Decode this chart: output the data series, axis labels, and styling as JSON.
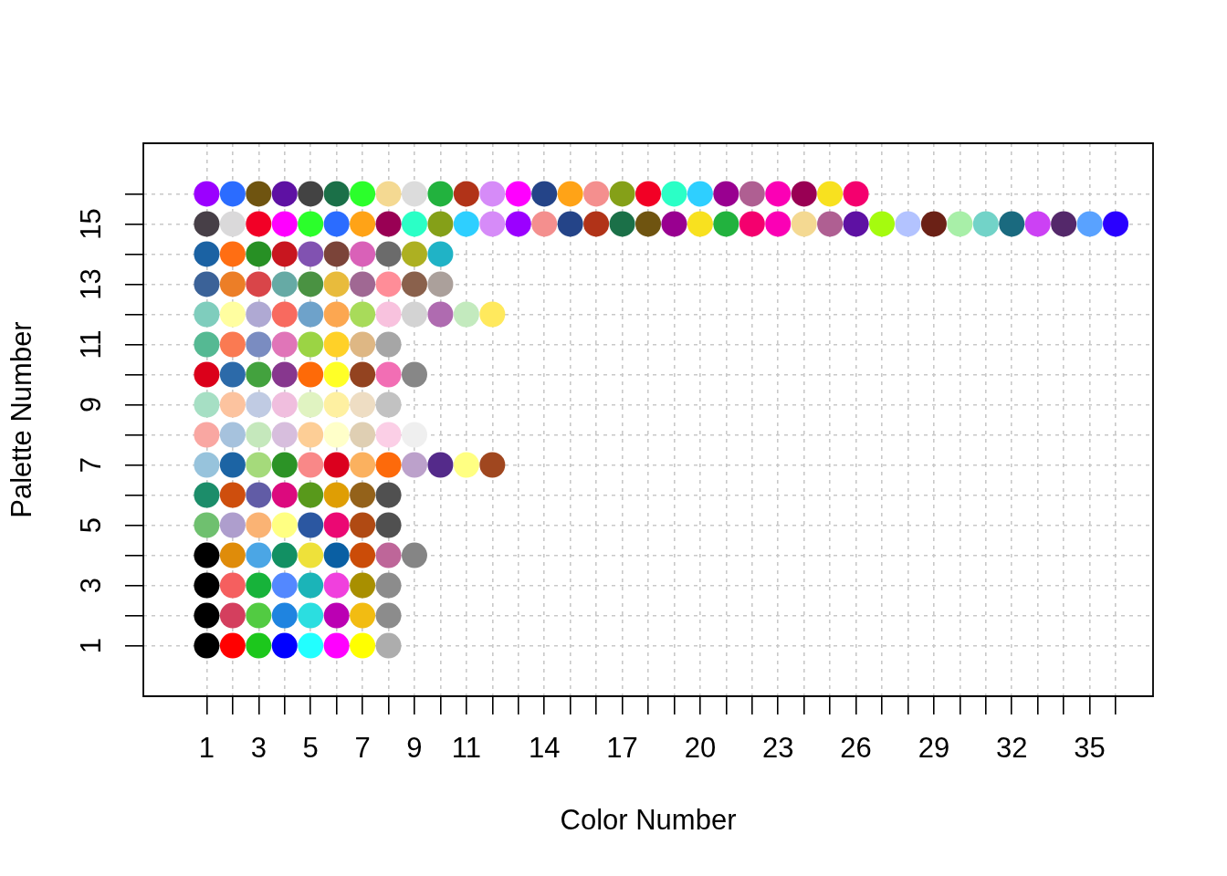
{
  "chart_data": {
    "type": "scatter",
    "xlabel": "Color Number",
    "ylabel": "Palette Number",
    "xlim": [
      -1.44,
      37.44
    ],
    "ylim": [
      -0.68,
      17.68
    ],
    "xticks": [
      1,
      {
        "value": 2,
        "label": null
      },
      3,
      {
        "value": 4,
        "label": null
      },
      5,
      {
        "value": 6,
        "label": null
      },
      7,
      {
        "value": 8,
        "label": null
      },
      9,
      {
        "value": 10,
        "label": null
      },
      11,
      {
        "value": 12,
        "label": null
      },
      {
        "value": 13,
        "label": null
      },
      14,
      {
        "value": 15,
        "label": null
      },
      {
        "value": 16,
        "label": null
      },
      17,
      {
        "value": 18,
        "label": null
      },
      {
        "value": 19,
        "label": null
      },
      20,
      {
        "value": 21,
        "label": null
      },
      {
        "value": 22,
        "label": null
      },
      23,
      {
        "value": 24,
        "label": null
      },
      {
        "value": 25,
        "label": null
      },
      26,
      {
        "value": 27,
        "label": null
      },
      {
        "value": 28,
        "label": null
      },
      29,
      {
        "value": 30,
        "label": null
      },
      {
        "value": 31,
        "label": null
      },
      32,
      {
        "value": 33,
        "label": null
      },
      {
        "value": 34,
        "label": null
      },
      35,
      {
        "value": 36,
        "label": null
      }
    ],
    "yticks": [
      1,
      {
        "value": 2,
        "label": null
      },
      3,
      {
        "value": 4,
        "label": null
      },
      5,
      {
        "value": 6,
        "label": null
      },
      7,
      {
        "value": 8,
        "label": null
      },
      9,
      {
        "value": 10,
        "label": null
      },
      11,
      {
        "value": 12,
        "label": null
      },
      13,
      {
        "value": 14,
        "label": null
      },
      15,
      {
        "value": 16,
        "label": null
      }
    ],
    "grid": true,
    "marker": "circle",
    "series": [
      {
        "x": [
          1,
          2,
          3,
          4,
          5,
          6,
          7,
          8
        ],
        "values": [
          1,
          1,
          1,
          1,
          1,
          1,
          1,
          1
        ],
        "colors": [
          "#000000",
          "#ff0000",
          "#1cc71c",
          "#0000ff",
          "#22ffff",
          "#ff00ff",
          "#ffff00",
          "#adadad"
        ]
      },
      {
        "x": [
          1,
          2,
          3,
          4,
          5,
          6,
          7,
          8
        ],
        "values": [
          2,
          2,
          2,
          2,
          2,
          2,
          2,
          2
        ],
        "colors": [
          "#000000",
          "#d43f5e",
          "#52cb42",
          "#1f84e0",
          "#2bdee0",
          "#bb00b3",
          "#f2bc12",
          "#8c8c8c"
        ]
      },
      {
        "x": [
          1,
          2,
          3,
          4,
          5,
          6,
          7,
          8
        ],
        "values": [
          3,
          3,
          3,
          3,
          3,
          3,
          3,
          3
        ],
        "colors": [
          "#000000",
          "#f55f5f",
          "#17b33a",
          "#5388ff",
          "#1bb4b8",
          "#f040dd",
          "#a88f00",
          "#8c8c8c"
        ]
      },
      {
        "x": [
          1,
          2,
          3,
          4,
          5,
          6,
          7,
          8,
          9
        ],
        "values": [
          4,
          4,
          4,
          4,
          4,
          4,
          4,
          4,
          4
        ],
        "colors": [
          "#000000",
          "#df8c0a",
          "#4ba6e5",
          "#129063",
          "#eee13a",
          "#0a5fa3",
          "#cb4c08",
          "#be6699",
          "#858585"
        ]
      },
      {
        "x": [
          1,
          2,
          3,
          4,
          5,
          6,
          7,
          8
        ],
        "values": [
          5,
          5,
          5,
          5,
          5,
          5,
          5,
          5
        ],
        "colors": [
          "#6fc06f",
          "#ae9ecd",
          "#fab374",
          "#ffff82",
          "#2b57a1",
          "#eb0873",
          "#b04a13",
          "#505050"
        ]
      },
      {
        "x": [
          1,
          2,
          3,
          4,
          5,
          6,
          7,
          8
        ],
        "values": [
          6,
          6,
          6,
          6,
          6,
          6,
          6,
          6
        ],
        "colors": [
          "#1c8d6a",
          "#ce4e0d",
          "#615ca6",
          "#dc0a7e",
          "#58991b",
          "#df9e04",
          "#94621a",
          "#505050"
        ]
      },
      {
        "x": [
          1,
          2,
          3,
          4,
          5,
          6,
          7,
          8,
          9,
          10,
          11,
          12
        ],
        "values": [
          7,
          7,
          7,
          7,
          7,
          7,
          7,
          7,
          7,
          7,
          7,
          7
        ],
        "colors": [
          "#97c3dc",
          "#1c64a4",
          "#a5da7b",
          "#2c9326",
          "#f98888",
          "#db001e",
          "#fbb15f",
          "#fd6a0b",
          "#bca1cb",
          "#542a8a",
          "#ffff82",
          "#a0471f"
        ]
      },
      {
        "x": [
          1,
          2,
          3,
          4,
          5,
          6,
          7,
          8,
          9
        ],
        "values": [
          8,
          8,
          8,
          8,
          8,
          8,
          8,
          8,
          8
        ],
        "colors": [
          "#f9a7a2",
          "#a6c2dd",
          "#c5e8bc",
          "#d7bedd",
          "#fdce96",
          "#ffffc9",
          "#dfcfb3",
          "#fbcfe6",
          "#efefef"
        ]
      },
      {
        "x": [
          1,
          2,
          3,
          4,
          5,
          6,
          7,
          8
        ],
        "values": [
          9,
          9,
          9,
          9,
          9,
          9,
          9,
          9
        ],
        "colors": [
          "#a6dfc4",
          "#fcc39f",
          "#c0cbe3",
          "#f0bede",
          "#e0f3c1",
          "#fef0a1",
          "#eeddc3",
          "#c2c2c2"
        ]
      },
      {
        "x": [
          1,
          2,
          3,
          4,
          5,
          6,
          7,
          8,
          9
        ],
        "values": [
          10,
          10,
          10,
          10,
          10,
          10,
          10,
          10,
          10
        ],
        "colors": [
          "#db001a",
          "#2c6aa9",
          "#43a23e",
          "#87378e",
          "#fe6a08",
          "#ffff27",
          "#934320",
          "#f26eb4",
          "#878787"
        ]
      },
      {
        "x": [
          1,
          2,
          3,
          4,
          5,
          6,
          7,
          8
        ],
        "values": [
          11,
          11,
          11,
          11,
          11,
          11,
          11,
          11
        ],
        "colors": [
          "#55b993",
          "#fa7a52",
          "#7a8cc1",
          "#e075b8",
          "#9bd444",
          "#ffd128",
          "#deb784",
          "#a6a6a6"
        ]
      },
      {
        "x": [
          1,
          2,
          3,
          4,
          5,
          6,
          7,
          8,
          9,
          10,
          11,
          12
        ],
        "values": [
          12,
          12,
          12,
          12,
          12,
          12,
          12,
          12,
          12,
          12,
          12,
          12
        ],
        "colors": [
          "#7fcdbd",
          "#fffea0",
          "#afa9d3",
          "#f86a5f",
          "#6ea2ca",
          "#fca751",
          "#a8db5a",
          "#f8c2de",
          "#d3d3d3",
          "#af6bb0",
          "#c3eabe",
          "#ffe95d"
        ]
      },
      {
        "x": [
          1,
          2,
          3,
          4,
          5,
          6,
          7,
          8,
          9,
          10
        ],
        "values": [
          13,
          13,
          13,
          13,
          13,
          13,
          13,
          13,
          13,
          13
        ],
        "colors": [
          "#3b6298",
          "#ec7e27",
          "#d94549",
          "#66aaa5",
          "#4a9242",
          "#e8bb3c",
          "#a06893",
          "#ff8d98",
          "#8a614c",
          "#aba09b"
        ]
      },
      {
        "x": [
          1,
          2,
          3,
          4,
          5,
          6,
          7,
          8,
          9,
          10
        ],
        "values": [
          14,
          14,
          14,
          14,
          14,
          14,
          14,
          14,
          14,
          14
        ],
        "colors": [
          "#1b62a3",
          "#ff6e13",
          "#279024",
          "#c8161f",
          "#8152b1",
          "#7b4439",
          "#d961b8",
          "#6b6b6b",
          "#adb022",
          "#20b3c6"
        ]
      },
      {
        "x": [
          1,
          2,
          3,
          4,
          5,
          6,
          7,
          8,
          9,
          10,
          11,
          12,
          13,
          14,
          15,
          16,
          17,
          18,
          19,
          20,
          21,
          22,
          23,
          24,
          25,
          26,
          27,
          28,
          29,
          30,
          31,
          32,
          33,
          34,
          35,
          36
        ],
        "values": [
          15,
          15,
          15,
          15,
          15,
          15,
          15,
          15,
          15,
          15,
          15,
          15,
          15,
          15,
          15,
          15,
          15,
          15,
          15,
          15,
          15,
          15,
          15,
          15,
          15,
          15,
          15,
          15,
          15,
          15,
          15,
          15,
          15,
          15,
          15,
          15
        ],
        "colors": [
          "#473f47",
          "#dad9da",
          "#f20026",
          "#ff00ff",
          "#2bff2b",
          "#2b6cff",
          "#ffa317",
          "#990054",
          "#2bffc6",
          "#85a018",
          "#2ecfff",
          "#d68bf8",
          "#9b00ff",
          "#f48f8e",
          "#244488",
          "#b13318",
          "#1b7048",
          "#6f5410",
          "#990090",
          "#f8e11f",
          "#22b23e",
          "#f4006e",
          "#fb00b5",
          "#f4d992",
          "#af5f92",
          "#5e11a3",
          "#a5fb0e",
          "#b3c3ff",
          "#6b2116",
          "#a8efa8",
          "#72d3c8",
          "#1a6a7f",
          "#cc41f4",
          "#54286a",
          "#59a2ff",
          "#2a00ff"
        ]
      },
      {
        "x": [
          1,
          2,
          3,
          4,
          5,
          6,
          7,
          8,
          9,
          10,
          11,
          12,
          13,
          14,
          15,
          16,
          17,
          18,
          19,
          20,
          21,
          22,
          23,
          24,
          25,
          26
        ],
        "values": [
          16,
          16,
          16,
          16,
          16,
          16,
          16,
          16,
          16,
          16,
          16,
          16,
          16,
          16,
          16,
          16,
          16,
          16,
          16,
          16,
          16,
          16,
          16,
          16,
          16,
          16
        ],
        "colors": [
          "#9b00ff",
          "#2b6cff",
          "#6f5410",
          "#5e11a3",
          "#434343",
          "#1b7048",
          "#2bff2b",
          "#f4d992",
          "#dcdcdc",
          "#22b23e",
          "#b13318",
          "#d68bf8",
          "#ff00ff",
          "#244488",
          "#ffa317",
          "#f48f8e",
          "#85a018",
          "#f20025",
          "#2bffc6",
          "#2ecfff",
          "#990090",
          "#af5f92",
          "#fb00b5",
          "#990054",
          "#f8e11f",
          "#f4006e"
        ]
      }
    ]
  }
}
